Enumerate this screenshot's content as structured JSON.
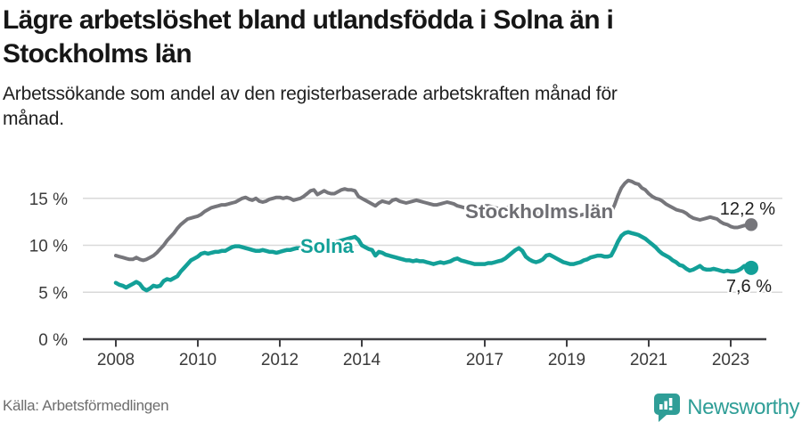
{
  "header": {
    "title_lines": [
      "Lägre arbetslöshet bland utlandsfödda i Solna än i",
      "Stockholms län"
    ],
    "subtitle_lines": [
      "Arbetssökande som andel av den registerbaserade arbetskraften månad för",
      "månad."
    ]
  },
  "footer": {
    "source_label": "Källa: Arbetsförmedlingen",
    "brand": "Newsworthy",
    "brand_icon": "newsworthy-chart-bubble-icon"
  },
  "colors": {
    "accent_teal": "#13a098",
    "line_gray": "#76767b",
    "label_gray": "#6d6d72",
    "annotation_dark": "#1f1f1f",
    "axis_text": "#3b3b3b",
    "axis_line": "#3f3f42",
    "gridline": "#d9d9d9",
    "brand_teal": "#2f9e97",
    "background": "#ffffff"
  },
  "chart_data": {
    "type": "line",
    "unit": "%",
    "x_interval": "monthly",
    "x_start": "2008-01",
    "x_end": "2023-07",
    "grid": "horizontal",
    "ylim": [
      0,
      17.5
    ],
    "y_ticks": [
      {
        "label": "0 %",
        "value": 0
      },
      {
        "label": "5 %",
        "value": 5
      },
      {
        "label": "10 %",
        "value": 10
      },
      {
        "label": "15 %",
        "value": 15
      }
    ],
    "x_ticks": [
      {
        "label": "2008",
        "month": 0
      },
      {
        "label": "2010",
        "month": 24
      },
      {
        "label": "2012",
        "month": 48
      },
      {
        "label": "2014",
        "month": 72
      },
      {
        "label": "2017",
        "month": 108
      },
      {
        "label": "2019",
        "month": 132
      },
      {
        "label": "2021",
        "month": 156
      },
      {
        "label": "2023",
        "month": 180
      }
    ],
    "series": [
      {
        "name": "Stockholms län",
        "color": "#76767b",
        "label_color": "#6d6d72",
        "end_label": "12,2 %",
        "end_value": 12.2,
        "line_width": 4,
        "dot_radius": 7.2,
        "values": [
          8.9,
          8.8,
          8.7,
          8.6,
          8.5,
          8.5,
          8.7,
          8.5,
          8.4,
          8.5,
          8.7,
          8.9,
          9.2,
          9.6,
          10.0,
          10.5,
          10.9,
          11.3,
          11.8,
          12.2,
          12.5,
          12.8,
          12.9,
          13.0,
          13.1,
          13.3,
          13.6,
          13.8,
          14.0,
          14.1,
          14.2,
          14.3,
          14.3,
          14.4,
          14.5,
          14.6,
          14.8,
          15.0,
          15.1,
          14.9,
          14.8,
          15.0,
          14.7,
          14.6,
          14.7,
          14.9,
          15.0,
          15.1,
          15.1,
          15.0,
          15.1,
          15.0,
          14.8,
          14.9,
          15.0,
          15.2,
          15.5,
          15.8,
          15.9,
          15.4,
          15.6,
          15.8,
          15.6,
          15.5,
          15.5,
          15.7,
          15.9,
          16.0,
          15.9,
          15.9,
          15.8,
          15.2,
          15.0,
          14.8,
          14.6,
          14.4,
          14.2,
          14.5,
          14.7,
          14.6,
          14.5,
          14.8,
          14.9,
          14.7,
          14.6,
          14.5,
          14.6,
          14.7,
          14.8,
          14.7,
          14.6,
          14.5,
          14.4,
          14.3,
          14.3,
          14.4,
          14.5,
          14.6,
          14.5,
          14.4,
          14.2,
          14.1,
          14.0,
          14.0,
          13.9,
          13.9,
          14.0,
          14.1,
          14.2,
          14.2,
          14.1,
          14.0,
          13.9,
          13.9,
          14.0,
          14.0,
          13.9,
          13.8,
          13.7,
          13.7,
          13.8,
          13.8,
          13.7,
          13.6,
          13.5,
          13.4,
          13.5,
          13.6,
          13.5,
          13.4,
          13.3,
          13.3,
          13.4,
          13.4,
          13.3,
          13.2,
          13.2,
          13.3,
          13.4,
          13.4,
          13.3,
          13.3,
          13.3,
          13.3,
          13.4,
          13.5,
          14.3,
          15.3,
          16.1,
          16.6,
          16.9,
          16.8,
          16.6,
          16.5,
          16.1,
          15.9,
          15.5,
          15.2,
          15.0,
          14.9,
          14.7,
          14.4,
          14.2,
          14.0,
          13.8,
          13.7,
          13.6,
          13.4,
          13.1,
          12.9,
          12.8,
          12.7,
          12.8,
          12.9,
          13.0,
          12.9,
          12.8,
          12.5,
          12.3,
          12.2,
          12.0,
          11.9,
          11.9,
          12.0,
          12.1,
          12.1,
          12.2
        ]
      },
      {
        "name": "Solna",
        "color": "#13a098",
        "label_color": "#13a098",
        "end_label": "7,6 %",
        "end_value": 7.6,
        "line_width": 4.5,
        "dot_radius": 8,
        "values": [
          6.0,
          5.8,
          5.7,
          5.5,
          5.7,
          5.9,
          6.1,
          5.9,
          5.4,
          5.2,
          5.4,
          5.7,
          5.6,
          5.7,
          6.2,
          6.4,
          6.3,
          6.5,
          6.7,
          7.2,
          7.6,
          8.0,
          8.4,
          8.6,
          8.8,
          9.1,
          9.2,
          9.1,
          9.2,
          9.3,
          9.3,
          9.4,
          9.4,
          9.6,
          9.8,
          9.9,
          9.9,
          9.8,
          9.7,
          9.6,
          9.5,
          9.4,
          9.4,
          9.5,
          9.4,
          9.3,
          9.3,
          9.2,
          9.3,
          9.4,
          9.5,
          9.5,
          9.6,
          9.7,
          9.7,
          9.8,
          9.8,
          9.9,
          10.0,
          10.0,
          10.0,
          10.1,
          10.2,
          10.3,
          10.3,
          10.4,
          10.5,
          10.6,
          10.7,
          10.8,
          10.9,
          10.6,
          10.0,
          9.8,
          9.6,
          9.5,
          8.9,
          9.3,
          9.2,
          9.0,
          8.9,
          8.8,
          8.7,
          8.6,
          8.5,
          8.4,
          8.4,
          8.3,
          8.4,
          8.3,
          8.3,
          8.2,
          8.1,
          8.0,
          8.1,
          8.2,
          8.1,
          8.2,
          8.3,
          8.5,
          8.6,
          8.4,
          8.3,
          8.2,
          8.1,
          8.0,
          8.0,
          8.0,
          8.0,
          8.1,
          8.1,
          8.2,
          8.3,
          8.4,
          8.6,
          8.9,
          9.2,
          9.5,
          9.7,
          9.4,
          8.8,
          8.5,
          8.3,
          8.2,
          8.3,
          8.5,
          8.9,
          9.0,
          8.8,
          8.6,
          8.4,
          8.2,
          8.1,
          8.0,
          8.0,
          8.1,
          8.2,
          8.4,
          8.5,
          8.7,
          8.8,
          8.9,
          8.9,
          8.8,
          8.8,
          8.9,
          9.6,
          10.4,
          11.0,
          11.3,
          11.4,
          11.3,
          11.2,
          11.1,
          10.9,
          10.7,
          10.4,
          10.1,
          9.8,
          9.4,
          9.1,
          8.9,
          8.7,
          8.4,
          8.2,
          7.9,
          7.8,
          7.5,
          7.3,
          7.4,
          7.6,
          7.8,
          7.5,
          7.4,
          7.4,
          7.5,
          7.4,
          7.3,
          7.2,
          7.3,
          7.2,
          7.2,
          7.3,
          7.5,
          7.8,
          7.7,
          7.6
        ]
      }
    ]
  }
}
